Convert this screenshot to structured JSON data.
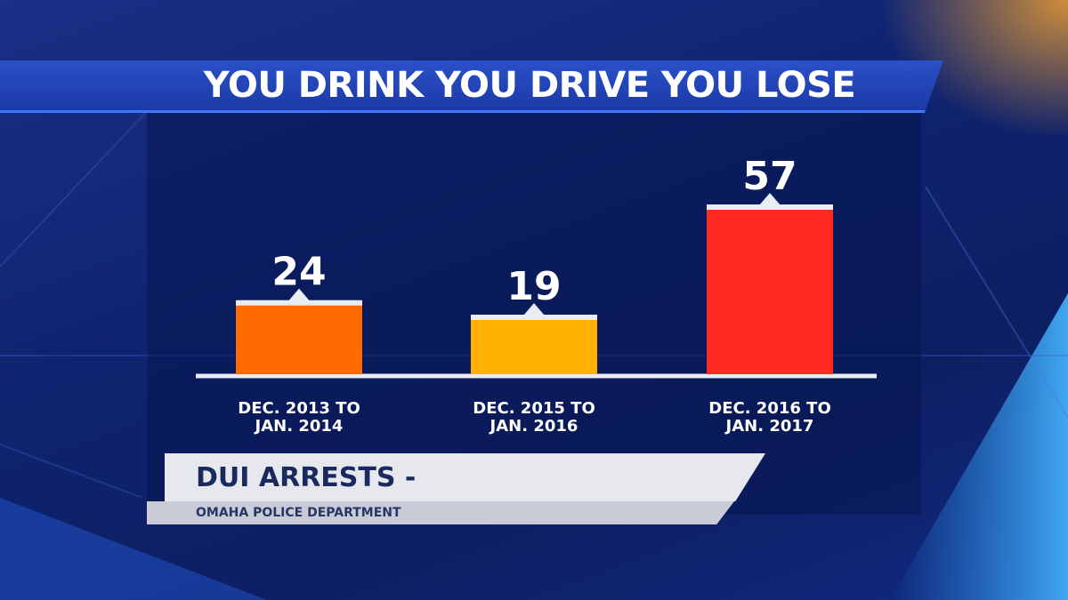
{
  "header": {
    "title": "YOU DRINK YOU DRIVE YOU LOSE"
  },
  "lower_third": {
    "title": "DUI ARRESTS -",
    "source": "OMAHA POLICE DEPARTMENT"
  },
  "colors": {
    "bar_1": "#ff6a00",
    "bar_2": "#ffb300",
    "bar_3": "#ff2a22",
    "bar_cap": "#e9ecf3",
    "text": "#ffffff"
  },
  "chart_data": {
    "type": "bar",
    "categories": [
      [
        "DEC. 2013 TO",
        "JAN. 2014"
      ],
      [
        "DEC. 2015 TO",
        "JAN. 2016"
      ],
      [
        "DEC. 2016 TO",
        "JAN. 2017"
      ]
    ],
    "values": [
      24,
      19,
      57
    ],
    "data_labels": [
      "24",
      "19",
      "57"
    ],
    "ylim": [
      0,
      57
    ],
    "grid": false,
    "legend": "none"
  }
}
